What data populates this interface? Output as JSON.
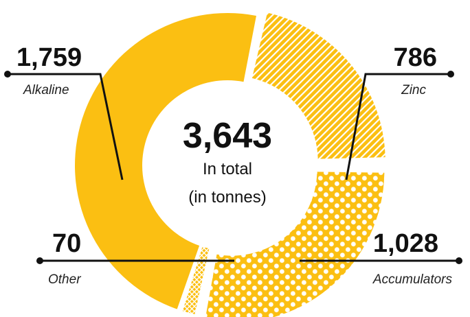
{
  "chart_data": {
    "type": "pie",
    "center": {
      "total": "3,643",
      "line1": "In total",
      "line2": "(in tonnes)"
    },
    "colors": {
      "fill": "#FBBF12",
      "pattern_bg": "#FBBF12",
      "pattern_fg": "#ffffff",
      "leader": "#111111"
    },
    "segments": [
      {
        "key": "zinc",
        "category": "Zinc",
        "value": 786,
        "value_label": "786",
        "pattern": "stripes"
      },
      {
        "key": "accumulators",
        "category": "Accumulators",
        "value": 1028,
        "value_label": "1,028",
        "pattern": "dots"
      },
      {
        "key": "other",
        "category": "Other",
        "value": 70,
        "value_label": "70",
        "pattern": "crosshatch"
      },
      {
        "key": "alkaline",
        "category": "Alkaline",
        "value": 1759,
        "value_label": "1,759",
        "pattern": "solid"
      }
    ]
  }
}
